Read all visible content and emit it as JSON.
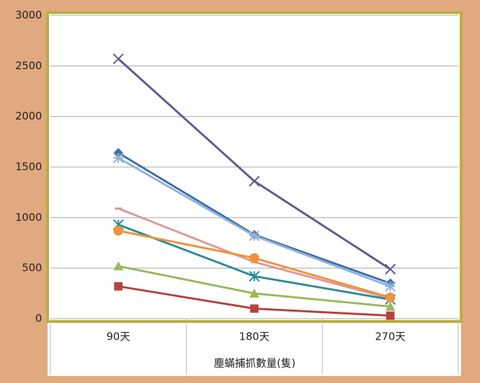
{
  "chart_data": {
    "type": "line",
    "x_label": "塵蟎捕抓數量(隻)",
    "categories": [
      "90天",
      "180天",
      "270天"
    ],
    "ylim": [
      0,
      3000
    ],
    "yticks": [
      0,
      500,
      1000,
      1500,
      2000,
      2500,
      3000
    ],
    "grid": true,
    "series": [
      {
        "color": "#5f5a8c",
        "marker": "x",
        "values": [
          2570,
          1360,
          490
        ]
      },
      {
        "color": "#3d6faa",
        "marker": "diamond",
        "values": [
          1640,
          830,
          350
        ]
      },
      {
        "color": "#94b3d9",
        "marker": "star",
        "values": [
          1590,
          820,
          320
        ]
      },
      {
        "color": "#d99a9a",
        "marker": "dash",
        "values": [
          1090,
          560,
          200
        ]
      },
      {
        "color": "#2e8b9a",
        "marker": "asterisk",
        "values": [
          930,
          420,
          190
        ]
      },
      {
        "color": "#f0923a",
        "marker": "circle",
        "values": [
          870,
          600,
          210
        ]
      },
      {
        "color": "#9aba5a",
        "marker": "triangle",
        "values": [
          520,
          250,
          120
        ]
      },
      {
        "color": "#b84040",
        "marker": "square",
        "values": [
          320,
          100,
          30
        ]
      }
    ]
  }
}
